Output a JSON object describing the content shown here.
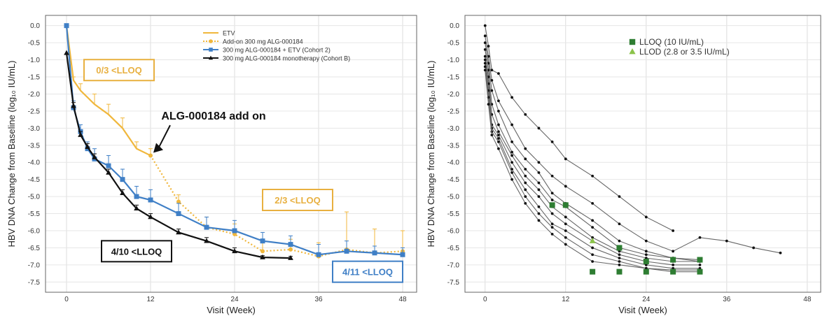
{
  "chart_data": [
    {
      "type": "line",
      "xlabel": "Visit (Week)",
      "ylabel": "HBV DNA Change from Baseline (log₁₀ IU/mL)",
      "xlim": [
        -3,
        50
      ],
      "ylim": [
        -7.8,
        0.3
      ],
      "xticks": [
        0,
        12,
        24,
        36,
        48
      ],
      "yticks": [
        0.0,
        -0.5,
        -1.0,
        -1.5,
        -2.0,
        -2.5,
        -3.0,
        -3.5,
        -4.0,
        -4.5,
        -5.0,
        -5.5,
        -6.0,
        -6.5,
        -7.0,
        -7.5
      ],
      "grid": true,
      "legend_position": "top-right",
      "series": [
        {
          "name": "ETV",
          "color": "#f0b73c",
          "style": "solid",
          "marker": "none",
          "x": [
            0,
            1,
            2,
            4,
            6,
            8,
            10,
            12
          ],
          "y": [
            0,
            -1.6,
            -1.9,
            -2.3,
            -2.6,
            -3.0,
            -3.6,
            -3.8
          ],
          "err": [
            0,
            0.1,
            0.2,
            0.3,
            0.3,
            0.3,
            0.2,
            0.2
          ]
        },
        {
          "name": "Add-on 300 mg ALG-000184",
          "color": "#f0b73c",
          "style": "dotted",
          "marker": "circle",
          "x": [
            12,
            16,
            20,
            24,
            28,
            32,
            36,
            40,
            44,
            48
          ],
          "y": [
            -3.8,
            -5.15,
            -5.9,
            -6.1,
            -6.6,
            -6.55,
            -6.75,
            -6.55,
            -6.65,
            -6.6
          ],
          "err": [
            0,
            0.2,
            0.3,
            0.3,
            0.3,
            0.3,
            0.4,
            1.1,
            0.7,
            0.6
          ]
        },
        {
          "name": "300 mg ALG-000184 + ETV (Cohort 2)",
          "color": "#3f7fc6",
          "style": "solid",
          "marker": "square",
          "x": [
            0,
            1,
            2,
            3,
            4,
            6,
            8,
            10,
            12,
            16,
            20,
            24,
            28,
            32,
            36,
            40,
            44,
            48
          ],
          "y": [
            0,
            -2.4,
            -3.1,
            -3.6,
            -3.9,
            -4.1,
            -4.5,
            -5.0,
            -5.1,
            -5.5,
            -5.9,
            -6.0,
            -6.3,
            -6.4,
            -6.7,
            -6.6,
            -6.65,
            -6.7
          ],
          "err": [
            0,
            0.2,
            0.2,
            0.2,
            0.3,
            0.3,
            0.3,
            0.3,
            0.3,
            0.3,
            0.3,
            0.3,
            0.25,
            0.25,
            0.3,
            0.3,
            0.2,
            0.2
          ]
        },
        {
          "name": "300 mg ALG-000184 monotherapy (Cohort B)",
          "color": "#111111",
          "style": "solid",
          "marker": "triangle",
          "x": [
            0,
            1,
            2,
            3,
            4,
            6,
            8,
            10,
            12,
            16,
            20,
            24,
            28,
            32
          ],
          "y": [
            -0.8,
            -2.35,
            -3.2,
            -3.55,
            -3.85,
            -4.3,
            -4.9,
            -5.35,
            -5.6,
            -6.05,
            -6.3,
            -6.6,
            -6.78,
            -6.8
          ],
          "err": [
            0,
            0.1,
            0.1,
            0.1,
            0.1,
            0.1,
            0.1,
            0.1,
            0.1,
            0.1,
            0.1,
            0.1,
            0.05,
            0.05
          ]
        }
      ],
      "annotations": [
        {
          "text": "0/3 <LLOQ",
          "x": 7.5,
          "y": -1.3,
          "color": "#e8b040"
        },
        {
          "text": "ALG-000184 add on",
          "x": 21,
          "y": -2.75,
          "color": "#111111",
          "arrow_to": [
            12,
            -3.8
          ]
        },
        {
          "text": "2/3 <LLOQ",
          "x": 33,
          "y": -5.1,
          "color": "#e8b040"
        },
        {
          "text": "4/10 <LLOQ",
          "x": 10,
          "y": -6.6,
          "color": "#111111"
        },
        {
          "text": "4/11 <LLOQ",
          "x": 43,
          "y": -7.2,
          "color": "#3f7fc6"
        }
      ]
    },
    {
      "type": "line",
      "xlabel": "Visit (Week)",
      "ylabel": "HBV DNA Change from Baseline (log₁₀ IU/mL)",
      "xlim": [
        -3,
        50
      ],
      "ylim": [
        -7.8,
        0.3
      ],
      "xticks": [
        0,
        12,
        24,
        36,
        48
      ],
      "yticks": [
        0.0,
        -0.5,
        -1.0,
        -1.5,
        -2.0,
        -2.5,
        -3.0,
        -3.5,
        -4.0,
        -4.5,
        -5.0,
        -5.5,
        -6.0,
        -6.5,
        -7.0,
        -7.5
      ],
      "grid": true,
      "legend_position": "top-right",
      "legend": [
        {
          "label": "LLOQ (10 IU/mL)",
          "color": "#2e7d32",
          "marker": "square"
        },
        {
          "label": "LLOD (2.8 or 3.5 IU/mL)",
          "color": "#8bc34a",
          "marker": "triangle"
        }
      ],
      "series": [
        {
          "x": [
            0,
            0.5,
            1,
            2,
            4,
            6,
            8,
            10,
            12,
            16,
            20,
            24,
            28
          ],
          "y": [
            0,
            -0.6,
            -1.3,
            -1.4,
            -2.1,
            -2.6,
            -3.0,
            -3.4,
            -3.9,
            -4.4,
            -5.0,
            -5.6,
            -6.0
          ]
        },
        {
          "x": [
            0,
            0.5,
            1,
            2,
            4,
            6,
            8,
            10,
            12,
            16,
            20,
            24,
            28,
            32,
            36,
            40,
            44
          ],
          "y": [
            -0.3,
            -0.9,
            -1.6,
            -2.2,
            -2.9,
            -3.6,
            -4.0,
            -4.4,
            -4.7,
            -5.2,
            -5.8,
            -6.3,
            -6.6,
            -6.2,
            -6.3,
            -6.5,
            -6.65
          ]
        },
        {
          "x": [
            0,
            0.5,
            1,
            2,
            4,
            6,
            8,
            10,
            12,
            16,
            20,
            24,
            28,
            32
          ],
          "y": [
            -0.5,
            -1.1,
            -1.9,
            -2.5,
            -3.4,
            -3.9,
            -4.3,
            -4.9,
            -5.2,
            -5.7,
            -6.3,
            -6.6,
            -6.8,
            -6.9
          ]
        },
        {
          "x": [
            0,
            0.5,
            1,
            2,
            4,
            6,
            8,
            10,
            12,
            16,
            20,
            24,
            28,
            32
          ],
          "y": [
            -0.7,
            -1.3,
            -2.3,
            -2.9,
            -3.7,
            -4.2,
            -4.6,
            -5.1,
            -5.3,
            -5.9,
            -6.5,
            -6.7,
            -6.8,
            -6.85
          ]
        },
        {
          "x": [
            0,
            0.5,
            1,
            2,
            4,
            6,
            8,
            10,
            12,
            16,
            20,
            24,
            28,
            32
          ],
          "y": [
            -0.9,
            -1.5,
            -2.6,
            -3.1,
            -3.8,
            -4.4,
            -4.8,
            -5.3,
            -5.6,
            -6.2,
            -6.6,
            -6.8,
            -6.9,
            -6.9
          ]
        },
        {
          "x": [
            0,
            0.5,
            1,
            2,
            4,
            6,
            8,
            10,
            12,
            16,
            20,
            24,
            28,
            32
          ],
          "y": [
            -1.0,
            -1.7,
            -2.9,
            -3.2,
            -4.0,
            -4.6,
            -5.0,
            -5.5,
            -5.8,
            -6.3,
            -6.7,
            -6.9,
            -7.0,
            -7.0
          ]
        },
        {
          "x": [
            0,
            0.5,
            1,
            2,
            4,
            6,
            8,
            10,
            12,
            16,
            20,
            24,
            28,
            32
          ],
          "y": [
            -1.1,
            -1.9,
            -3.0,
            -3.3,
            -4.2,
            -4.8,
            -5.3,
            -5.8,
            -6.0,
            -6.5,
            -6.8,
            -7.0,
            -7.1,
            -7.1
          ]
        },
        {
          "x": [
            0,
            0.5,
            1,
            2,
            4,
            6,
            8,
            10,
            12,
            16,
            20,
            24,
            28,
            32
          ],
          "y": [
            -1.2,
            -2.1,
            -3.1,
            -3.4,
            -4.3,
            -5.0,
            -5.5,
            -5.9,
            -6.2,
            -6.7,
            -6.9,
            -7.1,
            -7.2,
            -7.2
          ]
        },
        {
          "x": [
            0,
            0.5,
            1,
            2,
            4,
            6,
            8,
            10,
            12,
            16,
            20,
            24,
            28,
            32
          ],
          "y": [
            -1.3,
            -2.3,
            -3.2,
            -3.6,
            -4.5,
            -5.2,
            -5.7,
            -6.1,
            -6.4,
            -6.9,
            -7.0,
            -7.1,
            -7.15,
            -7.15
          ]
        }
      ],
      "lloq_markers": [
        [
          10,
          -5.25
        ],
        [
          12,
          -5.25
        ],
        [
          20,
          -6.5
        ],
        [
          24,
          -6.9
        ],
        [
          28,
          -6.85
        ],
        [
          32,
          -6.85
        ],
        [
          16,
          -7.2
        ],
        [
          20,
          -7.2
        ],
        [
          24,
          -7.2
        ],
        [
          28,
          -7.2
        ],
        [
          32,
          -7.2
        ]
      ],
      "llod_markers": [
        [
          16,
          -6.3
        ]
      ]
    }
  ]
}
